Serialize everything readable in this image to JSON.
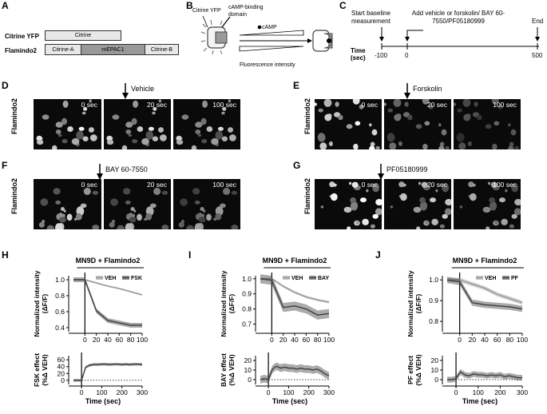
{
  "panels": {
    "A": {
      "label": "A",
      "row1_name": "Citrine YFP",
      "row1_box": "Citrine",
      "row2_name": "Flamindo2",
      "row2_boxes": [
        "Citrine-A",
        "mEPAC1",
        "Citrine-B"
      ]
    },
    "B": {
      "label": "B",
      "citrine_label": "Citrine YFP",
      "camp_domain_label": "cAMP-binding domain",
      "camp_label": "cAMP",
      "fluor_label": "Fluorescence intensity"
    },
    "C": {
      "label": "C",
      "start_label": "Start baseline measurement",
      "add_label": "Add vehicle or forskolin/ BAY 60-7550/PF05180999",
      "end_label": "End",
      "axis_label": "Time (sec)",
      "ticks": [
        "-100",
        "0",
        "500"
      ]
    },
    "D": {
      "label": "D",
      "condition": "Vehicle",
      "row_label": "Flamindo2",
      "times": [
        "0 sec",
        "20 sec",
        "100 sec"
      ]
    },
    "E": {
      "label": "E",
      "condition": "Forskolin",
      "row_label": "Flamindo2",
      "times": [
        "0 sec",
        "20 sec",
        "100 sec"
      ]
    },
    "F": {
      "label": "F",
      "condition": "BAY 60-7550",
      "row_label": "Flamindo2",
      "times": [
        "0 sec",
        "20 sec",
        "100 sec"
      ]
    },
    "G": {
      "label": "G",
      "condition": "PF05180999",
      "row_label": "Flamindo2",
      "times": [
        "0 sec",
        "20 sec",
        "100 sec"
      ]
    }
  },
  "chart_data": [
    {
      "panel": "H",
      "type": "line",
      "title": "MN9D + Flamindo2",
      "xlabel": "",
      "ylabel": "Normalized intensity (ΔF/F)",
      "xlim": [
        -20,
        100
      ],
      "ylim": [
        0.35,
        1.05
      ],
      "xticks": [
        0,
        20,
        40,
        60,
        80,
        100
      ],
      "yticks": [
        0.4,
        0.6,
        0.8,
        1.0
      ],
      "series": [
        {
          "name": "VEH",
          "color": "#9a9a9a",
          "x": [
            -20,
            0,
            20,
            40,
            60,
            80,
            100
          ],
          "y": [
            1.0,
            1.0,
            0.96,
            0.92,
            0.89,
            0.85,
            0.81
          ],
          "err": 0.01
        },
        {
          "name": "FSK",
          "color": "#444444",
          "x": [
            -20,
            0,
            20,
            40,
            60,
            80,
            100
          ],
          "y": [
            1.0,
            1.0,
            0.61,
            0.49,
            0.46,
            0.43,
            0.43
          ],
          "err": 0.03
        }
      ]
    },
    {
      "panel": "H",
      "type": "line",
      "xlabel": "Time (sec)",
      "ylabel": "FSK effect (%Δ VEH)",
      "xlim": [
        -40,
        300
      ],
      "ylim": [
        -12,
        72
      ],
      "xticks": [
        0,
        100,
        200,
        300
      ],
      "yticks": [
        0,
        20,
        40,
        60
      ],
      "series": [
        {
          "color": "#444444",
          "x": [
            -40,
            -20,
            0,
            20,
            40,
            60,
            80,
            100,
            120,
            140,
            160,
            180,
            200,
            220,
            240,
            260,
            280,
            300
          ],
          "y": [
            0,
            0,
            0,
            38,
            44,
            46,
            46,
            47,
            47,
            46,
            47,
            47,
            46,
            47,
            46,
            47,
            47,
            46
          ],
          "err": 4
        }
      ]
    },
    {
      "panel": "I",
      "type": "line",
      "title": "MN9D + Flamindo2",
      "xlabel": "",
      "ylabel": "Normalized intensity (ΔF/F)",
      "xlim": [
        -20,
        100
      ],
      "ylim": [
        0.65,
        1.02
      ],
      "xticks": [
        0,
        20,
        40,
        60,
        80,
        100
      ],
      "yticks": [
        0.7,
        0.8,
        0.9,
        1.0
      ],
      "series": [
        {
          "name": "VEH",
          "color": "#9a9a9a",
          "x": [
            -20,
            0,
            20,
            40,
            60,
            80,
            100
          ],
          "y": [
            1.0,
            1.0,
            0.95,
            0.91,
            0.88,
            0.86,
            0.845
          ],
          "err": 0.008
        },
        {
          "name": "BAY",
          "color": "#444444",
          "x": [
            -20,
            0,
            20,
            40,
            60,
            80,
            100
          ],
          "y": [
            1.0,
            0.99,
            0.81,
            0.82,
            0.8,
            0.76,
            0.77
          ],
          "err": 0.03
        }
      ]
    },
    {
      "panel": "I",
      "type": "line",
      "xlabel": "Time (sec)",
      "ylabel": "BAY effect (%Δ VEH)",
      "xlim": [
        -40,
        300
      ],
      "ylim": [
        -5,
        25
      ],
      "xticks": [
        0,
        100,
        200,
        300
      ],
      "yticks": [
        0,
        10,
        20
      ],
      "series": [
        {
          "color": "#444444",
          "x": [
            -40,
            -20,
            0,
            20,
            40,
            60,
            80,
            100,
            120,
            140,
            160,
            180,
            200,
            220,
            240,
            260,
            280,
            300
          ],
          "y": [
            0,
            1,
            0,
            11,
            14,
            12,
            13,
            12,
            12,
            11,
            12,
            11,
            11,
            10,
            11,
            9,
            6,
            4
          ],
          "err": 4
        }
      ]
    },
    {
      "panel": "J",
      "type": "line",
      "title": "MN9D + Flamindo2",
      "xlabel": "",
      "ylabel": "Normalized intensity (ΔF/F)",
      "xlim": [
        -20,
        100
      ],
      "ylim": [
        0.75,
        1.02
      ],
      "xticks": [
        0,
        20,
        40,
        60,
        80,
        100
      ],
      "yticks": [
        0.8,
        0.9,
        1.0
      ],
      "series": [
        {
          "name": "VEH",
          "color": "#9a9a9a",
          "x": [
            -20,
            0,
            20,
            40,
            60,
            80,
            100
          ],
          "y": [
            1.0,
            1.0,
            0.98,
            0.96,
            0.93,
            0.91,
            0.89
          ],
          "err": 0.01
        },
        {
          "name": "PF",
          "color": "#444444",
          "x": [
            -20,
            0,
            20,
            40,
            60,
            80,
            100
          ],
          "y": [
            1.0,
            0.99,
            0.89,
            0.88,
            0.875,
            0.87,
            0.86
          ],
          "err": 0.015
        }
      ]
    },
    {
      "panel": "J",
      "type": "line",
      "xlabel": "Time (sec)",
      "ylabel": "PF effect (%Δ VEH)",
      "xlim": [
        -40,
        300
      ],
      "ylim": [
        -5,
        25
      ],
      "xticks": [
        0,
        100,
        200,
        300
      ],
      "yticks": [
        0,
        10,
        20
      ],
      "series": [
        {
          "color": "#444444",
          "x": [
            -40,
            -20,
            0,
            20,
            40,
            60,
            80,
            100,
            120,
            140,
            160,
            180,
            200,
            220,
            240,
            260,
            280,
            300
          ],
          "y": [
            0,
            0,
            1,
            8,
            5,
            4,
            6,
            5,
            5,
            4,
            5,
            4,
            5,
            3,
            4,
            3,
            2,
            2
          ],
          "err": 3
        }
      ]
    }
  ],
  "chart_panels": {
    "H": {
      "label": "H"
    },
    "I": {
      "label": "I"
    },
    "J": {
      "label": "J"
    }
  }
}
